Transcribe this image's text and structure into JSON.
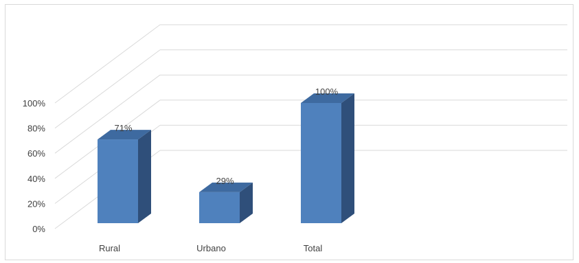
{
  "chart_data": {
    "type": "bar",
    "style": "3d-column",
    "categories": [
      "Rural",
      "Urbano",
      "Total"
    ],
    "values": [
      71,
      29,
      100
    ],
    "data_labels": [
      "71%",
      "29%",
      "100%"
    ],
    "ylim": [
      0,
      100
    ],
    "yticks": [
      "0%",
      "20%",
      "40%",
      "60%",
      "80%",
      "100%"
    ],
    "grid": true,
    "legend": "none",
    "colors": {
      "front": "#4f81bd",
      "side": "#2f4f7a",
      "top": "#3e6aa0",
      "grid": "#d9d9d9",
      "text": "#404040"
    }
  }
}
